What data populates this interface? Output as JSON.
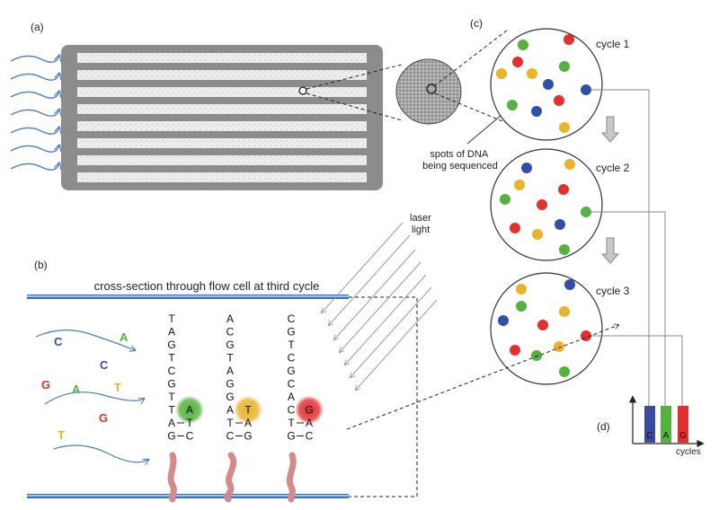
{
  "panels": {
    "a": "(a)",
    "b": "(b)",
    "c": "(c)",
    "d": "(d)"
  },
  "spots_label": [
    "spots of DNA",
    "being sequenced"
  ],
  "laser_label": [
    "laser",
    "light"
  ],
  "cross_section_title": "cross-section through flow cell at third cycle",
  "cycles": [
    "cycle 1",
    "cycle 2",
    "cycle 3"
  ],
  "free_nucleotides": [
    {
      "letter": "C",
      "color": "#2f4fa8"
    },
    {
      "letter": "A",
      "color": "#55b23d"
    },
    {
      "letter": "C",
      "color": "#2f4fa8"
    },
    {
      "letter": "G",
      "color": "#e23030"
    },
    {
      "letter": "A",
      "color": "#55b23d"
    },
    {
      "letter": "T",
      "color": "#e9b32a"
    },
    {
      "letter": "G",
      "color": "#e23030"
    },
    {
      "letter": "T",
      "color": "#e9b32a"
    }
  ],
  "strands": [
    {
      "template": [
        "T",
        "A",
        "G",
        "T",
        "C",
        "G",
        "T",
        "T"
      ],
      "paired": [
        {
          "template": "A",
          "added": "T"
        },
        {
          "template": "G",
          "added": "C"
        }
      ],
      "incorporated": "A",
      "glow_color": "#55b23d"
    },
    {
      "template": [
        "A",
        "C",
        "G",
        "T",
        "A",
        "G",
        "G",
        "A"
      ],
      "paired": [
        {
          "template": "T",
          "added": "A"
        },
        {
          "template": "C",
          "added": "G"
        }
      ],
      "incorporated": "T",
      "glow_color": "#e9b32a"
    },
    {
      "template": [
        "C",
        "G",
        "T",
        "C",
        "G",
        "C",
        "A",
        "C"
      ],
      "paired": [
        {
          "template": "T",
          "added": "A"
        },
        {
          "template": "G",
          "added": "C"
        }
      ],
      "incorporated": "G",
      "glow_color": "#e23030"
    }
  ],
  "chart": {
    "x_label": "cycles",
    "bars": [
      {
        "letter": "C",
        "color": "#3a4aa0"
      },
      {
        "letter": "A",
        "color": "#55b23d"
      },
      {
        "letter": "G",
        "color": "#e23030"
      }
    ]
  },
  "colors": {
    "blue": "#2f4fa8",
    "green": "#55b23d",
    "red": "#e23030",
    "yellow": "#e9b32a",
    "flow_arrow": "#4a7cc2",
    "flowcell": "#8c8c8c",
    "anchor": "#d48a8a"
  }
}
